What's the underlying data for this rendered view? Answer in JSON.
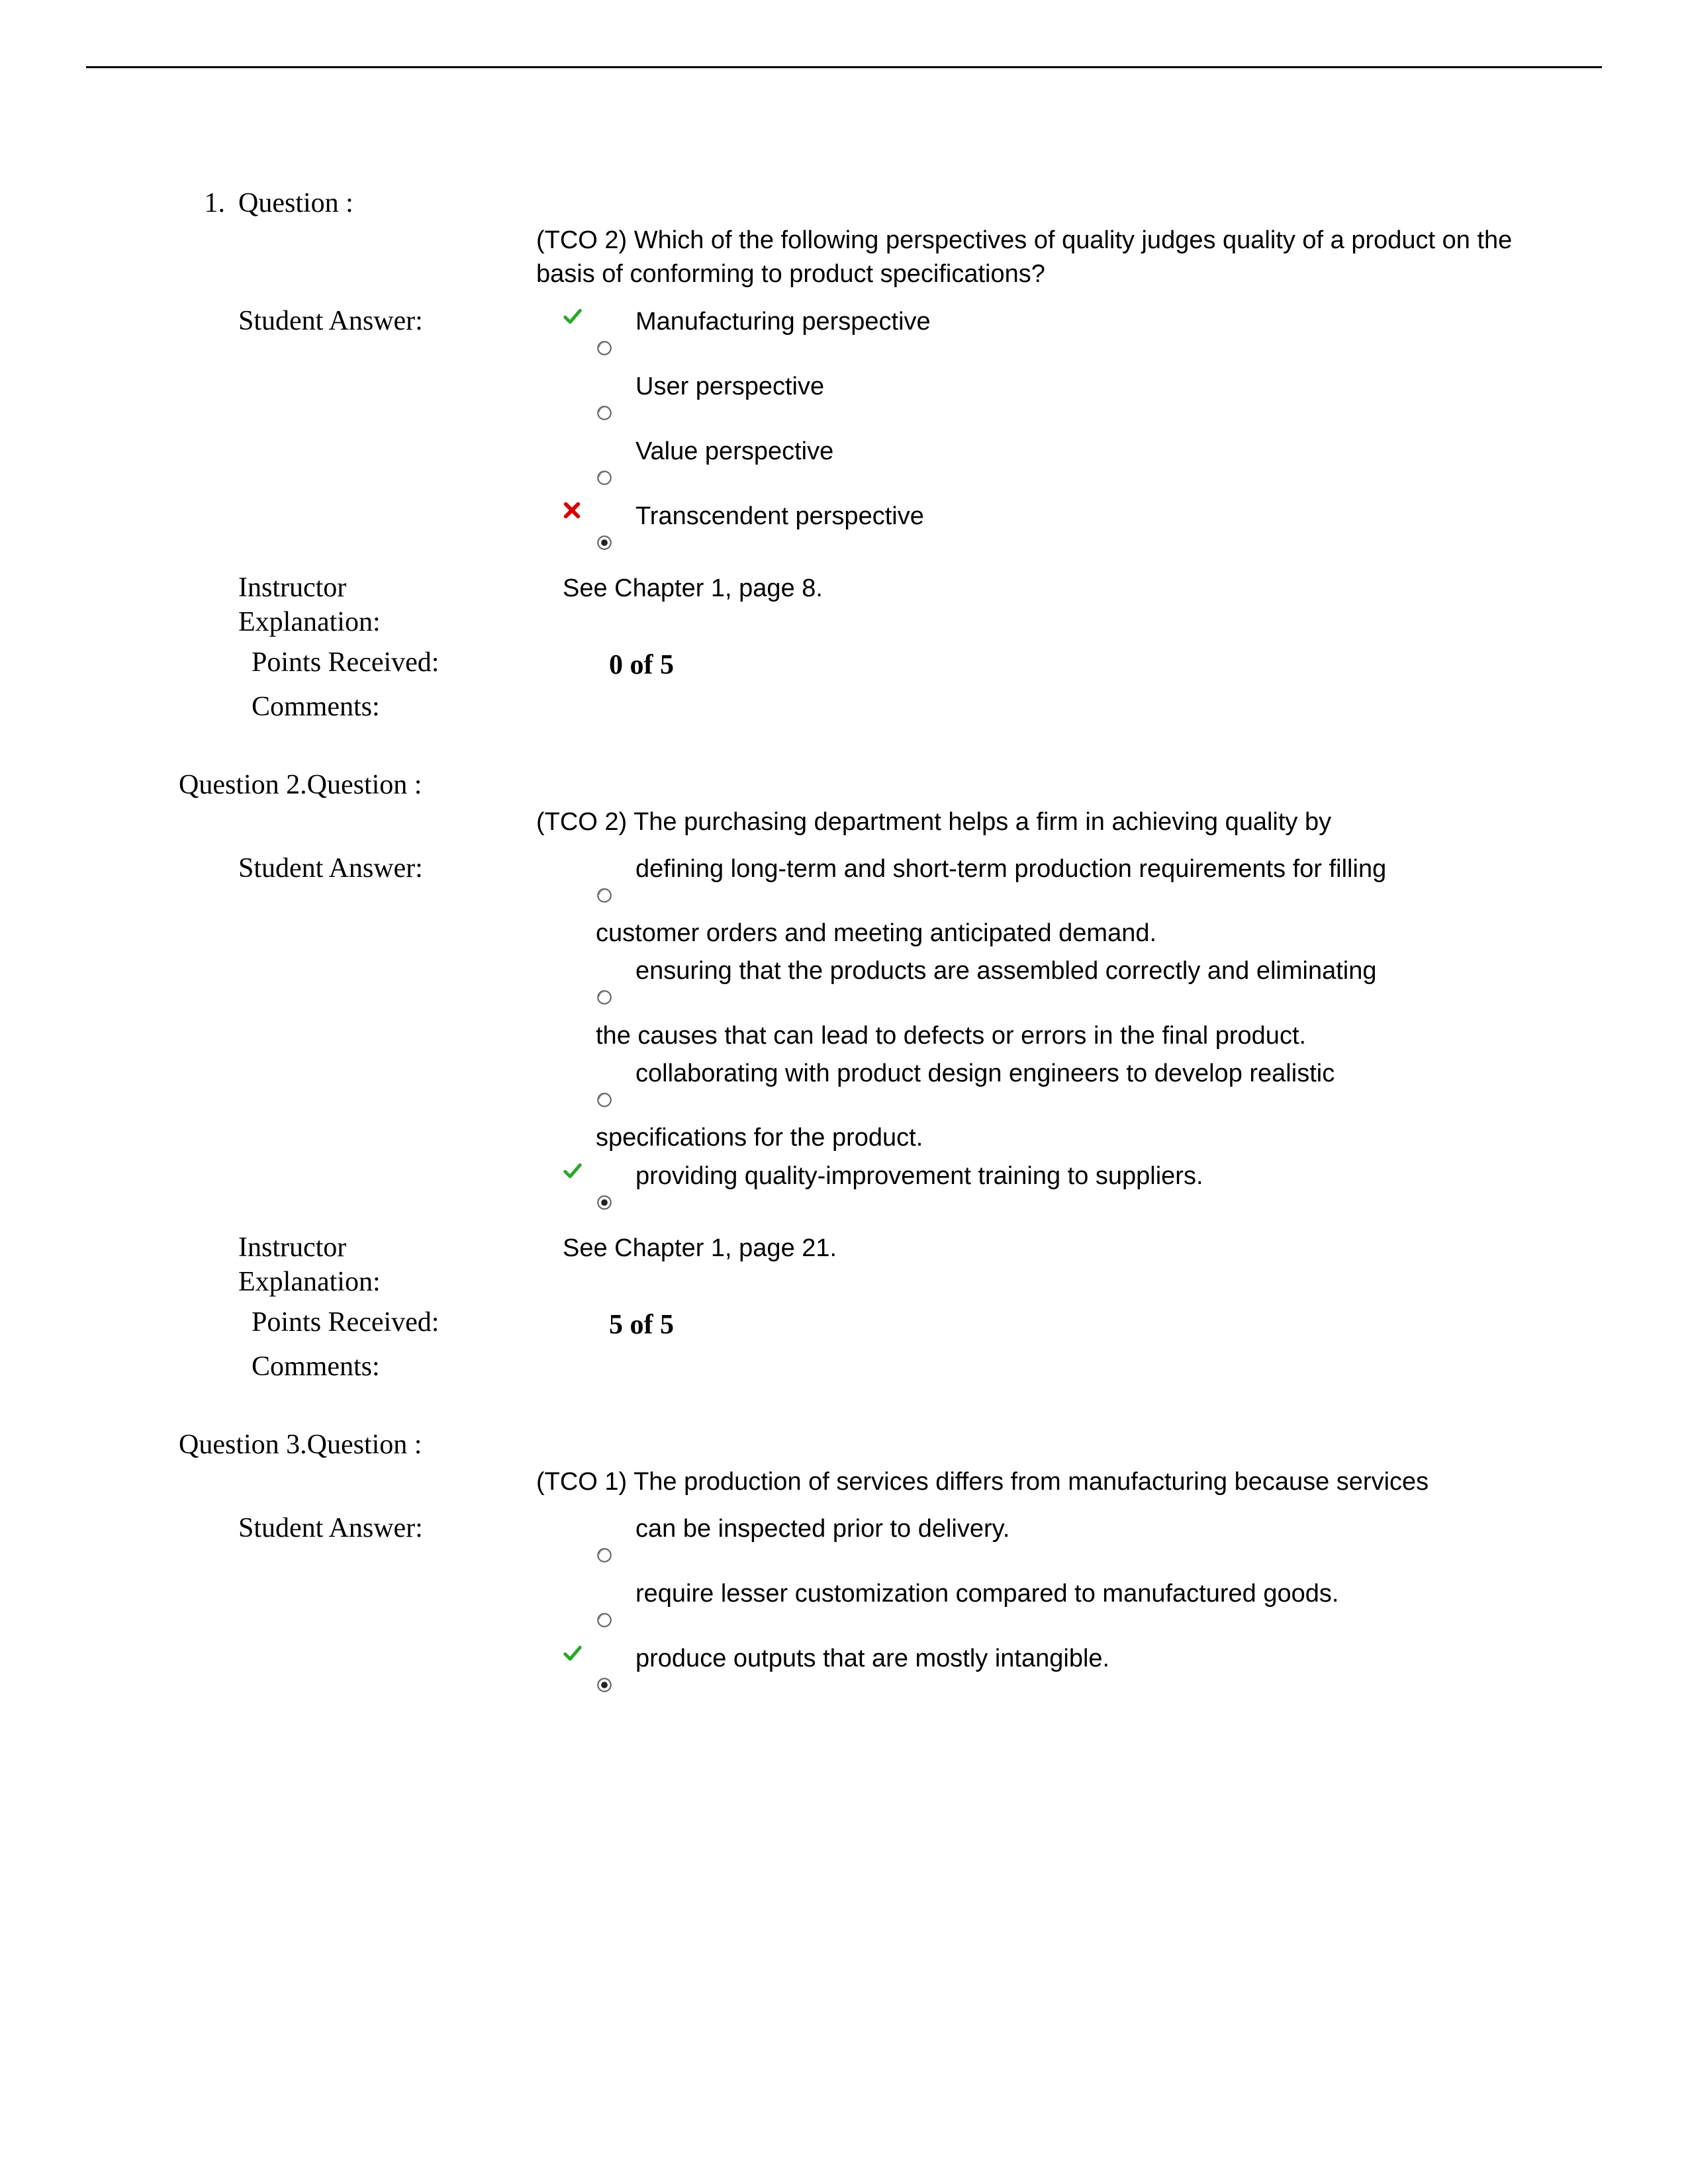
{
  "labels": {
    "question": "Question :",
    "student_answer": "Student Answer:",
    "instructor_explanation": "Instructor Explanation:",
    "points_received": "Points Received:",
    "comments": "Comments:"
  },
  "q1": {
    "number": "1.",
    "prefix": "",
    "text": "(TCO 2) Which of the following perspectives of quality judges quality of a product on the basis of conforming to product specifications?",
    "answers": {
      "a": "Manufacturing perspective",
      "b": "User perspective",
      "c": "Value perspective",
      "d": "Transcendent perspective"
    },
    "explanation": "See Chapter 1, page 8.",
    "points": "0 of 5"
  },
  "q2": {
    "prefix": "Question 2.",
    "text": "(TCO 2) The purchasing department helps a firm in achieving quality by",
    "answers": {
      "a": "defining long-term and short-term production requirements for filling",
      "a_cont": "customer orders and meeting anticipated demand.",
      "b": "ensuring that the products are assembled correctly and eliminating",
      "b_cont": "the causes that can lead to defects or errors in the final product.",
      "c": "collaborating with product design engineers to develop realistic",
      "c_cont": "specifications for the product.",
      "d": "providing quality-improvement training to suppliers."
    },
    "explanation": "See Chapter 1, page 21.",
    "points": "5 of 5"
  },
  "q3": {
    "prefix": "Question 3.",
    "text": "(TCO 1) The production of services differs from manufacturing because services",
    "answers": {
      "a": "can be inspected prior to delivery.",
      "b": "require lesser customization compared to manufactured goods.",
      "c": "produce outputs that are mostly intangible."
    }
  },
  "colors": {
    "check": "#2aa82a",
    "cross": "#d80000",
    "radio_stroke": "#555555",
    "radio_fill": "#ffffff",
    "radio_dot": "#222222"
  }
}
